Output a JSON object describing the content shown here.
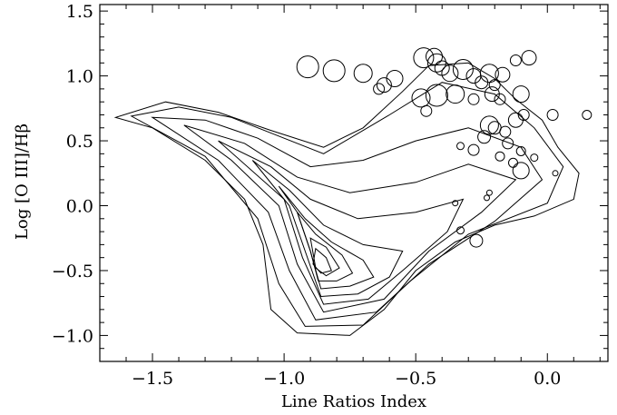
{
  "chart_data": {
    "type": "scatter",
    "title": "",
    "xlabel": "Line Ratios Index",
    "ylabel": "Log [O III]/Hβ",
    "xlim": [
      -1.7,
      0.23
    ],
    "ylim": [
      -1.2,
      1.55
    ],
    "x_ticks": [
      -1.5,
      -1.0,
      -0.5,
      0.0
    ],
    "x_tick_labels": [
      "−1.5",
      "−1.0",
      "−0.5",
      "0.0"
    ],
    "y_ticks": [
      -1.0,
      -0.5,
      0.0,
      0.5,
      1.0,
      1.5
    ],
    "y_tick_labels": [
      "−1.0",
      "−0.5",
      "0.0",
      "0.5",
      "1.0",
      "1.5"
    ],
    "grid": false,
    "density_contours": {
      "levels": 9,
      "peak": [
        -0.86,
        -0.43
      ],
      "outer_boundary": [
        [
          -1.64,
          0.68
        ],
        [
          -1.45,
          0.8
        ],
        [
          -1.25,
          0.72
        ],
        [
          -1.05,
          0.58
        ],
        [
          -0.85,
          0.45
        ],
        [
          -0.7,
          0.6
        ],
        [
          -0.55,
          0.88
        ],
        [
          -0.45,
          1.08
        ],
        [
          -0.3,
          1.1
        ],
        [
          -0.2,
          0.98
        ],
        [
          -0.12,
          0.82
        ],
        [
          -0.02,
          0.66
        ],
        [
          0.04,
          0.45
        ],
        [
          0.12,
          0.25
        ],
        [
          0.1,
          0.05
        ],
        [
          -0.05,
          -0.08
        ],
        [
          -0.2,
          -0.15
        ],
        [
          -0.35,
          -0.28
        ],
        [
          -0.5,
          -0.5
        ],
        [
          -0.62,
          -0.8
        ],
        [
          -0.75,
          -1.0
        ],
        [
          -0.95,
          -0.98
        ],
        [
          -1.05,
          -0.8
        ],
        [
          -1.08,
          -0.3
        ],
        [
          -1.15,
          0.05
        ],
        [
          -1.3,
          0.35
        ],
        [
          -1.5,
          0.6
        ],
        [
          -1.64,
          0.68
        ]
      ],
      "inner_ridges": [
        {
          "n": 1,
          "points": [
            [
              -1.58,
              0.69
            ],
            [
              -1.4,
              0.76
            ],
            [
              -1.2,
              0.68
            ],
            [
              -1.0,
              0.52
            ],
            [
              -0.85,
              0.4
            ],
            [
              -0.6,
              0.7
            ],
            [
              -0.4,
              0.95
            ],
            [
              -0.2,
              0.86
            ],
            [
              -0.05,
              0.6
            ],
            [
              0.06,
              0.3
            ],
            [
              0.0,
              0.02
            ],
            [
              -0.3,
              -0.22
            ],
            [
              -0.52,
              -0.58
            ],
            [
              -0.7,
              -0.92
            ],
            [
              -0.92,
              -0.93
            ],
            [
              -1.02,
              -0.6
            ],
            [
              -1.1,
              -0.1
            ],
            [
              -1.3,
              0.38
            ],
            [
              -1.58,
              0.69
            ]
          ]
        },
        {
          "n": 2,
          "points": [
            [
              -1.5,
              0.68
            ],
            [
              -1.3,
              0.66
            ],
            [
              -1.1,
              0.52
            ],
            [
              -0.9,
              0.3
            ],
            [
              -0.7,
              0.35
            ],
            [
              -0.5,
              0.5
            ],
            [
              -0.3,
              0.6
            ],
            [
              -0.1,
              0.45
            ],
            [
              -0.02,
              0.2
            ],
            [
              -0.2,
              -0.12
            ],
            [
              -0.45,
              -0.45
            ],
            [
              -0.65,
              -0.82
            ],
            [
              -0.88,
              -0.88
            ],
            [
              -0.98,
              -0.5
            ],
            [
              -1.06,
              -0.05
            ],
            [
              -1.25,
              0.35
            ],
            [
              -1.5,
              0.68
            ]
          ]
        },
        {
          "n": 3,
          "points": [
            [
              -1.38,
              0.62
            ],
            [
              -1.15,
              0.48
            ],
            [
              -0.95,
              0.22
            ],
            [
              -0.75,
              0.1
            ],
            [
              -0.5,
              0.18
            ],
            [
              -0.3,
              0.32
            ],
            [
              -0.12,
              0.2
            ],
            [
              -0.25,
              -0.05
            ],
            [
              -0.45,
              -0.35
            ],
            [
              -0.62,
              -0.72
            ],
            [
              -0.85,
              -0.82
            ],
            [
              -0.95,
              -0.45
            ],
            [
              -1.02,
              0.0
            ],
            [
              -1.2,
              0.35
            ],
            [
              -1.38,
              0.62
            ]
          ]
        },
        {
          "n": 4,
          "points": [
            [
              -1.25,
              0.5
            ],
            [
              -1.05,
              0.3
            ],
            [
              -0.9,
              0.05
            ],
            [
              -0.72,
              -0.1
            ],
            [
              -0.5,
              -0.05
            ],
            [
              -0.32,
              0.05
            ],
            [
              -0.38,
              -0.2
            ],
            [
              -0.55,
              -0.5
            ],
            [
              -0.68,
              -0.72
            ],
            [
              -0.85,
              -0.76
            ],
            [
              -0.93,
              -0.4
            ],
            [
              -1.0,
              0.05
            ],
            [
              -1.25,
              0.5
            ]
          ]
        },
        {
          "n": 5,
          "points": [
            [
              -1.12,
              0.35
            ],
            [
              -0.98,
              0.12
            ],
            [
              -0.85,
              -0.15
            ],
            [
              -0.7,
              -0.3
            ],
            [
              -0.55,
              -0.35
            ],
            [
              -0.6,
              -0.55
            ],
            [
              -0.72,
              -0.68
            ],
            [
              -0.86,
              -0.7
            ],
            [
              -0.92,
              -0.35
            ],
            [
              -0.98,
              0.0
            ],
            [
              -1.12,
              0.35
            ]
          ]
        },
        {
          "n": 6,
          "points": [
            [
              -1.02,
              0.15
            ],
            [
              -0.92,
              -0.1
            ],
            [
              -0.82,
              -0.28
            ],
            [
              -0.7,
              -0.42
            ],
            [
              -0.66,
              -0.55
            ],
            [
              -0.75,
              -0.62
            ],
            [
              -0.86,
              -0.64
            ],
            [
              -0.9,
              -0.35
            ],
            [
              -0.95,
              -0.05
            ],
            [
              -1.02,
              0.15
            ]
          ]
        },
        {
          "n": 7,
          "points": [
            [
              -0.95,
              -0.05
            ],
            [
              -0.88,
              -0.22
            ],
            [
              -0.78,
              -0.38
            ],
            [
              -0.74,
              -0.52
            ],
            [
              -0.8,
              -0.58
            ],
            [
              -0.87,
              -0.58
            ],
            [
              -0.9,
              -0.35
            ],
            [
              -0.95,
              -0.05
            ]
          ]
        },
        {
          "n": 8,
          "points": [
            [
              -0.9,
              -0.25
            ],
            [
              -0.84,
              -0.32
            ],
            [
              -0.79,
              -0.48
            ],
            [
              -0.84,
              -0.54
            ],
            [
              -0.88,
              -0.48
            ],
            [
              -0.9,
              -0.25
            ]
          ]
        },
        {
          "n": 9,
          "points": [
            [
              -0.88,
              -0.33
            ],
            [
              -0.84,
              -0.4
            ],
            [
              -0.82,
              -0.5
            ],
            [
              -0.86,
              -0.52
            ],
            [
              -0.89,
              -0.45
            ],
            [
              -0.88,
              -0.33
            ]
          ]
        }
      ]
    },
    "circles": [
      {
        "x": -0.91,
        "y": 1.07,
        "r": 12
      },
      {
        "x": -0.81,
        "y": 1.04,
        "r": 12
      },
      {
        "x": -0.7,
        "y": 1.02,
        "r": 10
      },
      {
        "x": -0.64,
        "y": 0.9,
        "r": 6
      },
      {
        "x": -0.62,
        "y": 0.93,
        "r": 8
      },
      {
        "x": -0.58,
        "y": 0.98,
        "r": 9
      },
      {
        "x": -0.47,
        "y": 1.14,
        "r": 11
      },
      {
        "x": -0.43,
        "y": 1.15,
        "r": 9
      },
      {
        "x": -0.42,
        "y": 1.1,
        "r": 10
      },
      {
        "x": -0.4,
        "y": 1.06,
        "r": 8
      },
      {
        "x": -0.37,
        "y": 1.02,
        "r": 9
      },
      {
        "x": -0.32,
        "y": 1.05,
        "r": 11
      },
      {
        "x": -0.28,
        "y": 1.0,
        "r": 8
      },
      {
        "x": -0.25,
        "y": 0.95,
        "r": 7
      },
      {
        "x": -0.22,
        "y": 1.02,
        "r": 10
      },
      {
        "x": -0.2,
        "y": 0.93,
        "r": 6
      },
      {
        "x": -0.17,
        "y": 1.01,
        "r": 8
      },
      {
        "x": -0.07,
        "y": 1.14,
        "r": 8
      },
      {
        "x": -0.12,
        "y": 1.12,
        "r": 6
      },
      {
        "x": -0.48,
        "y": 0.83,
        "r": 10
      },
      {
        "x": -0.42,
        "y": 0.85,
        "r": 12
      },
      {
        "x": -0.35,
        "y": 0.86,
        "r": 10
      },
      {
        "x": -0.28,
        "y": 0.82,
        "r": 6
      },
      {
        "x": -0.21,
        "y": 0.86,
        "r": 8
      },
      {
        "x": -0.18,
        "y": 0.82,
        "r": 6
      },
      {
        "x": -0.1,
        "y": 0.86,
        "r": 9
      },
      {
        "x": -0.46,
        "y": 0.73,
        "r": 6
      },
      {
        "x": -0.22,
        "y": 0.62,
        "r": 10
      },
      {
        "x": -0.2,
        "y": 0.6,
        "r": 7
      },
      {
        "x": -0.16,
        "y": 0.57,
        "r": 6
      },
      {
        "x": -0.12,
        "y": 0.66,
        "r": 8
      },
      {
        "x": -0.09,
        "y": 0.7,
        "r": 6
      },
      {
        "x": 0.02,
        "y": 0.7,
        "r": 6
      },
      {
        "x": 0.15,
        "y": 0.7,
        "r": 5
      },
      {
        "x": -0.24,
        "y": 0.53,
        "r": 7
      },
      {
        "x": -0.15,
        "y": 0.48,
        "r": 6
      },
      {
        "x": -0.28,
        "y": 0.43,
        "r": 6
      },
      {
        "x": -0.33,
        "y": 0.46,
        "r": 4
      },
      {
        "x": -0.18,
        "y": 0.38,
        "r": 5
      },
      {
        "x": -0.1,
        "y": 0.42,
        "r": 5
      },
      {
        "x": -0.13,
        "y": 0.33,
        "r": 5
      },
      {
        "x": -0.1,
        "y": 0.27,
        "r": 9
      },
      {
        "x": -0.05,
        "y": 0.37,
        "r": 4
      },
      {
        "x": 0.03,
        "y": 0.25,
        "r": 3
      },
      {
        "x": -0.22,
        "y": 0.1,
        "r": 3
      },
      {
        "x": -0.23,
        "y": 0.06,
        "r": 3
      },
      {
        "x": -0.33,
        "y": -0.19,
        "r": 4
      },
      {
        "x": -0.27,
        "y": -0.27,
        "r": 7
      },
      {
        "x": -0.35,
        "y": 0.02,
        "r": 3
      }
    ]
  }
}
